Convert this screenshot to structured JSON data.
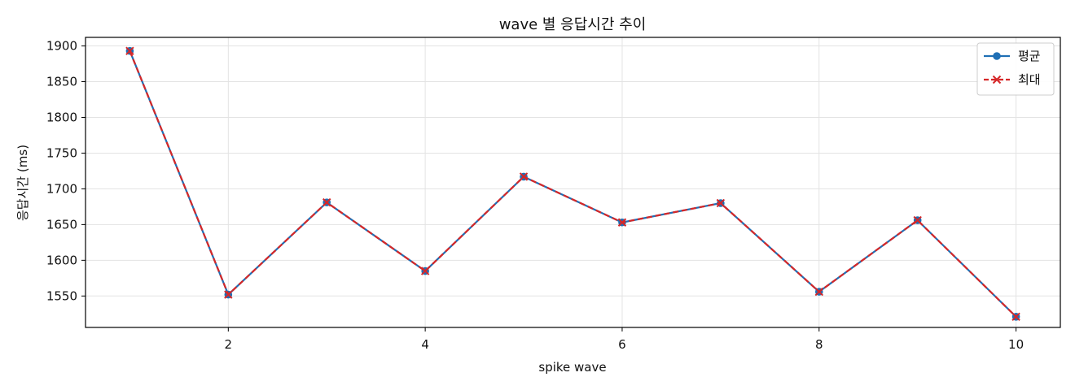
{
  "chart_data": {
    "type": "line",
    "title": "wave 별 응답시간 추이",
    "xlabel": "spike wave",
    "ylabel": "응답시간 (ms)",
    "x": [
      1,
      2,
      3,
      4,
      5,
      6,
      7,
      8,
      9,
      10
    ],
    "series": [
      {
        "name": "평균",
        "values": [
          1893,
          1552,
          1681,
          1585,
          1717,
          1653,
          1680,
          1556,
          1656,
          1521
        ],
        "color": "#1f6fb5",
        "marker": "circle",
        "linestyle": "solid"
      },
      {
        "name": "최대",
        "values": [
          1893,
          1552,
          1681,
          1585,
          1717,
          1653,
          1680,
          1556,
          1656,
          1521
        ],
        "color": "#d62728",
        "marker": "x",
        "linestyle": "dashed"
      }
    ],
    "xlim": [
      0.55,
      10.45
    ],
    "ylim": [
      1506,
      1912
    ],
    "xticks": [
      2,
      4,
      6,
      8,
      10
    ],
    "yticks": [
      1550,
      1600,
      1650,
      1700,
      1750,
      1800,
      1850,
      1900
    ],
    "grid": true,
    "legend_position": "top-right"
  }
}
